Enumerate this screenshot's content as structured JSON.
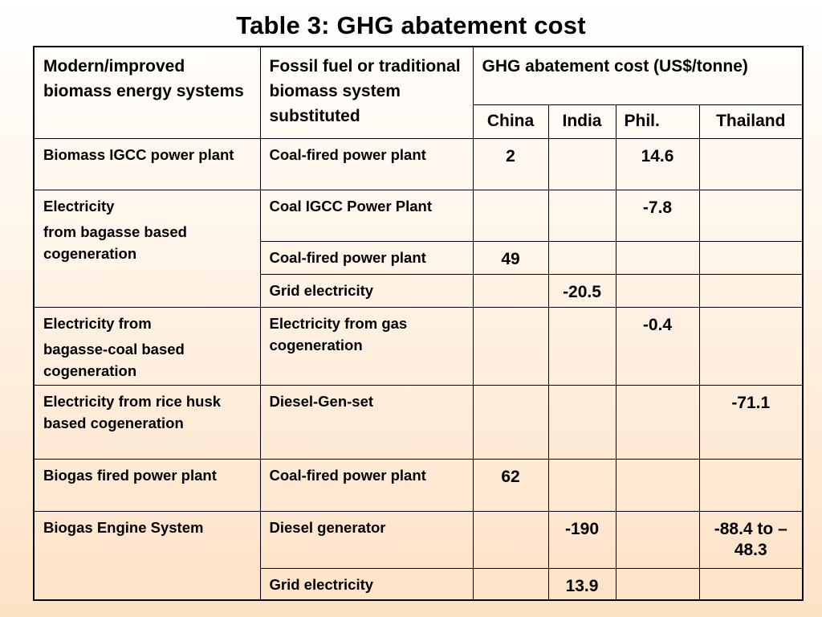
{
  "title": "Table 3: GHG abatement cost",
  "header": {
    "col1": "Modern/improved biomass energy systems",
    "col2": "Fossil fuel or traditional biomass system substituted",
    "cost_group": "GHG abatement cost (US$/tonne)",
    "countries": [
      "China",
      "India",
      "Phil.",
      "Thailand"
    ]
  },
  "rows": [
    {
      "system": "Biomass IGCC power plant",
      "substituted": "Coal-fired power plant",
      "china": "2",
      "india": "",
      "phil": "14.6",
      "thailand": ""
    },
    {
      "system_line1": "Electricity",
      "system_line2": "from bagasse based cogeneration",
      "substituted": "Coal IGCC Power Plant",
      "china": "",
      "india": "",
      "phil": "-7.8",
      "thailand": ""
    },
    {
      "substituted": "Coal-fired power plant",
      "china": "49",
      "india": "",
      "phil": "",
      "thailand": ""
    },
    {
      "substituted": "Grid electricity",
      "china": "",
      "india": "-20.5",
      "phil": "",
      "thailand": ""
    },
    {
      "system_line1": "Electricity from",
      "system_line2": "bagasse-coal based cogeneration",
      "substituted": "Electricity from gas cogeneration",
      "china": "",
      "india": "",
      "phil": "-0.4",
      "thailand": ""
    },
    {
      "system": "Electricity from rice husk based cogeneration",
      "substituted": "Diesel-Gen-set",
      "china": "",
      "india": "",
      "phil": "",
      "thailand": "-71.1"
    },
    {
      "system": "Biogas fired power plant",
      "substituted": "Coal-fired power plant",
      "china": "62",
      "india": "",
      "phil": "",
      "thailand": ""
    },
    {
      "system": "Biogas Engine System",
      "substituted": "Diesel generator",
      "china": "",
      "india": "-190",
      "phil": "",
      "thailand": "-88.4 to –48.3"
    },
    {
      "substituted": "Grid electricity",
      "china": "",
      "india": "13.9",
      "phil": "",
      "thailand": ""
    }
  ]
}
